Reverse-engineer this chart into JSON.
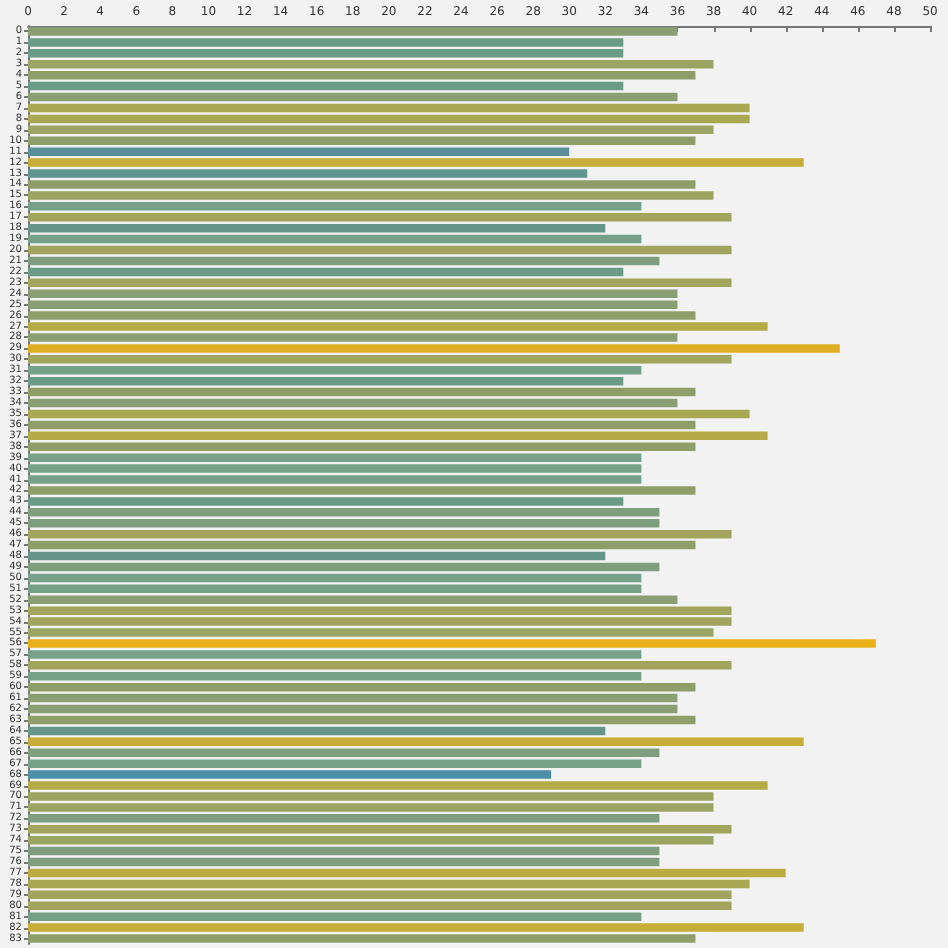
{
  "chart_data": {
    "type": "bar",
    "orientation": "horizontal",
    "grid": false,
    "categories": [
      "0",
      "1",
      "2",
      "3",
      "4",
      "5",
      "6",
      "7",
      "8",
      "9",
      "10",
      "11",
      "12",
      "13",
      "14",
      "15",
      "16",
      "17",
      "18",
      "19",
      "20",
      "21",
      "22",
      "23",
      "24",
      "25",
      "26",
      "27",
      "28",
      "29",
      "30",
      "31",
      "32",
      "33",
      "34",
      "35",
      "36",
      "37",
      "38",
      "39",
      "40",
      "41",
      "42",
      "43",
      "44",
      "45",
      "46",
      "47",
      "48",
      "49",
      "50",
      "51",
      "52",
      "53",
      "54",
      "55",
      "56",
      "57",
      "58",
      "59",
      "60",
      "61",
      "62",
      "63",
      "64",
      "65",
      "66",
      "67",
      "68",
      "69",
      "70",
      "71",
      "72",
      "73",
      "74",
      "75",
      "76",
      "77",
      "78",
      "79",
      "80",
      "81",
      "82",
      "83"
    ],
    "values": [
      36,
      33,
      33,
      38,
      37,
      33,
      36,
      40,
      40,
      38,
      37,
      30,
      43,
      31,
      37,
      38,
      34,
      39,
      32,
      34,
      39,
      35,
      33,
      39,
      36,
      36,
      37,
      41,
      36,
      45,
      39,
      34,
      33,
      37,
      36,
      40,
      37,
      41,
      37,
      34,
      34,
      34,
      37,
      33,
      35,
      35,
      39,
      37,
      32,
      35,
      34,
      34,
      36,
      39,
      39,
      38,
      47,
      34,
      39,
      34,
      37,
      36,
      36,
      37,
      32,
      43,
      35,
      34,
      29,
      41,
      38,
      38,
      35,
      39,
      38,
      35,
      35,
      42,
      40,
      39,
      39,
      34,
      43,
      37
    ],
    "colors": [
      "#8a9e74",
      "#6a9a88",
      "#6a9a88",
      "#9ba462",
      "#8f9d68",
      "#6a9a88",
      "#8a9e74",
      "#a9a852",
      "#a9a852",
      "#9ba462",
      "#8f9d68",
      "#5a8f9a",
      "#c6ad38",
      "#5f9590",
      "#8f9d68",
      "#9ba462",
      "#76a088",
      "#a0a45c",
      "#66968a",
      "#76a088",
      "#a0a45c",
      "#7f9e80",
      "#6a9a88",
      "#a0a45c",
      "#8a9e74",
      "#8a9e74",
      "#8f9d68",
      "#b4aa48",
      "#8a9e74",
      "#dcae24",
      "#a0a45c",
      "#76a088",
      "#6a9a88",
      "#8f9d68",
      "#8a9e74",
      "#a9a852",
      "#8f9d68",
      "#b4aa48",
      "#8f9d68",
      "#76a088",
      "#76a088",
      "#76a088",
      "#8f9d68",
      "#6a9a88",
      "#7f9e80",
      "#7f9e80",
      "#a0a45c",
      "#8f9d68",
      "#66968a",
      "#7f9e80",
      "#76a088",
      "#76a088",
      "#8a9e74",
      "#a0a45c",
      "#a0a45c",
      "#9ba462",
      "#e8b01a",
      "#76a088",
      "#a0a45c",
      "#76a088",
      "#8f9d68",
      "#8a9e74",
      "#8a9e74",
      "#8f9d68",
      "#66968a",
      "#c6ad38",
      "#7f9e80",
      "#76a088",
      "#4b8ea6",
      "#b4aa48",
      "#9ba462",
      "#9ba462",
      "#7f9e80",
      "#a0a45c",
      "#9ba462",
      "#7f9e80",
      "#7f9e80",
      "#bcab40",
      "#a9a852",
      "#a0a45c",
      "#a0a45c",
      "#76a088",
      "#c6ad38",
      "#8f9d68"
    ],
    "xlim": [
      0,
      50
    ],
    "xticks": [
      0,
      2,
      4,
      6,
      8,
      10,
      12,
      14,
      16,
      18,
      20,
      22,
      24,
      26,
      28,
      30,
      32,
      34,
      36,
      38,
      40,
      42,
      44,
      46,
      48,
      50
    ]
  }
}
